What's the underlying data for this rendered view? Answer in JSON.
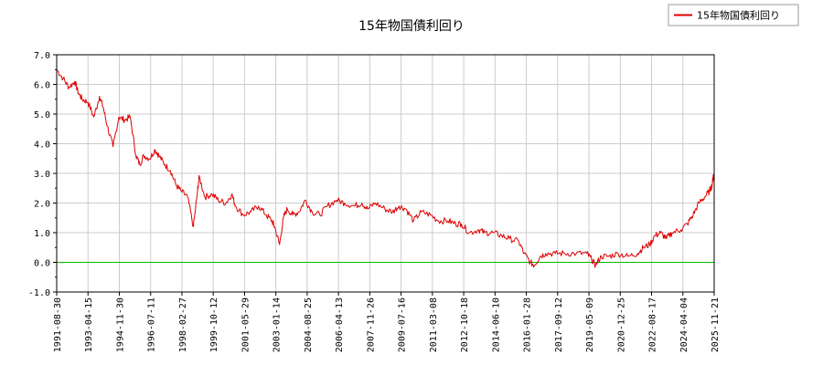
{
  "chart_data": {
    "type": "line",
    "title": "15年物国債利回り",
    "xlabel": "",
    "ylabel": "",
    "ylim": [
      -1.0,
      7.0
    ],
    "y_ticks": [
      "7.0",
      "6.0",
      "5.0",
      "4.0",
      "3.0",
      "2.0",
      "1.0",
      "0.0",
      "-1.0"
    ],
    "x_tick_labels": [
      "1991-08-30",
      "1993-04-15",
      "1994-11-30",
      "1996-07-11",
      "1998-02-27",
      "1999-10-12",
      "2001-05-29",
      "2003-01-14",
      "2004-08-25",
      "2006-04-13",
      "2007-11-26",
      "2009-07-16",
      "2011-03-08",
      "2012-10-18",
      "2014-06-10",
      "2016-01-28",
      "2017-09-12",
      "2019-05-09",
      "2020-12-25",
      "2022-08-17",
      "2024-04-04",
      "2025-11-21"
    ],
    "grid": true,
    "legend_position": "top-right",
    "reference_line": {
      "y": 0.0,
      "color": "#00bb00"
    },
    "series": [
      {
        "name": "15年物国債利回り",
        "color": "#dd0000",
        "x": [
          1991.66,
          1992.0,
          1992.3,
          1992.6,
          1992.8,
          1993.0,
          1993.29,
          1993.6,
          1993.9,
          1994.1,
          1994.3,
          1994.6,
          1994.91,
          1995.2,
          1995.5,
          1995.8,
          1996.0,
          1996.2,
          1996.52,
          1996.8,
          1997.0,
          1997.3,
          1997.6,
          1997.9,
          1998.16,
          1998.5,
          1998.8,
          1999.0,
          1999.1,
          1999.4,
          1999.78,
          2000.1,
          2000.5,
          2000.8,
          2001.0,
          2001.41,
          2001.8,
          2002.2,
          2002.6,
          2002.9,
          2003.04,
          2003.3,
          2003.5,
          2003.7,
          2004.0,
          2004.3,
          2004.65,
          2005.0,
          2005.4,
          2005.8,
          2006.28,
          2006.7,
          2007.2,
          2007.6,
          2007.9,
          2008.3,
          2008.8,
          2009.2,
          2009.54,
          2009.9,
          2010.3,
          2010.7,
          2011.18,
          2011.6,
          2012.1,
          2012.5,
          2012.8,
          2013.2,
          2013.7,
          2014.0,
          2014.44,
          2014.9,
          2015.3,
          2015.8,
          2016.07,
          2016.4,
          2016.6,
          2016.9,
          2017.2,
          2017.7,
          2018.2,
          2018.8,
          2019.35,
          2019.6,
          2019.8,
          2020.1,
          2020.5,
          2020.98,
          2021.5,
          2022.0,
          2022.3,
          2022.63,
          2022.9,
          2023.2,
          2023.5,
          2023.8,
          2024.26,
          2024.6,
          2024.9,
          2025.2,
          2025.5,
          2025.75,
          2025.89,
          2025.95,
          2026.0
        ],
        "values": [
          6.5,
          6.2,
          5.9,
          6.1,
          5.7,
          5.5,
          5.4,
          4.9,
          5.6,
          5.2,
          4.6,
          3.9,
          4.9,
          4.8,
          4.9,
          3.6,
          3.3,
          3.6,
          3.5,
          3.8,
          3.6,
          3.3,
          3.1,
          2.6,
          2.4,
          2.2,
          1.2,
          2.3,
          2.9,
          2.2,
          2.3,
          2.1,
          2.0,
          2.3,
          1.9,
          1.6,
          1.7,
          1.9,
          1.6,
          1.4,
          1.2,
          0.6,
          1.5,
          1.8,
          1.6,
          1.7,
          2.1,
          1.7,
          1.6,
          1.9,
          2.1,
          2.0,
          1.9,
          2.0,
          1.8,
          2.0,
          1.8,
          1.7,
          1.9,
          1.8,
          1.4,
          1.7,
          1.6,
          1.4,
          1.4,
          1.3,
          1.3,
          1.0,
          1.1,
          1.0,
          1.0,
          0.9,
          0.8,
          0.7,
          0.3,
          0.0,
          -0.1,
          0.2,
          0.3,
          0.3,
          0.3,
          0.3,
          0.3,
          0.1,
          -0.1,
          0.2,
          0.2,
          0.3,
          0.2,
          0.3,
          0.5,
          0.6,
          0.9,
          1.0,
          0.8,
          1.0,
          1.1,
          1.3,
          1.6,
          2.0,
          2.2,
          2.4,
          2.6,
          2.95,
          2.8
        ]
      }
    ]
  }
}
